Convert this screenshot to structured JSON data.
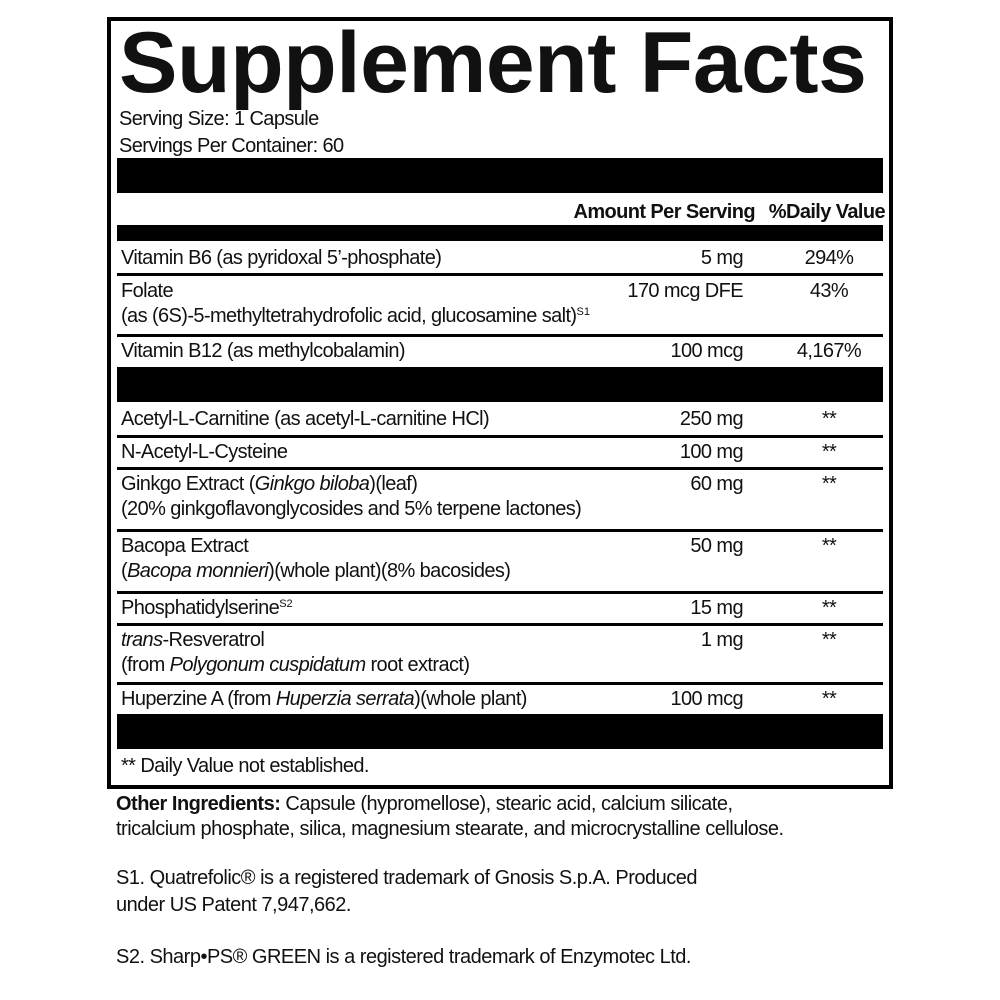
{
  "label": {
    "title": "Supplement Facts",
    "serving_size": "Serving Size: 1 Capsule",
    "servings_per_container": "Servings Per Container: 60",
    "header_amount": "Amount Per Serving",
    "header_dv": "%Daily Value",
    "vitamins": [
      {
        "name": "Vitamin B6 (as pyridoxal 5’-phosphate)",
        "amount": "5 mg",
        "dv": "294%"
      },
      {
        "name": "Folate",
        "name_line2": "(as (6S)-5-methyltetrahydrofolic acid, glucosamine salt)",
        "sup": "S1",
        "amount": "170 mcg DFE",
        "dv": "43%"
      },
      {
        "name": "Vitamin B12 (as methylcobalamin)",
        "amount": "100 mcg",
        "dv": "4,167%"
      }
    ],
    "others": [
      {
        "name": "Acetyl-L-Carnitine (as acetyl-L-carnitine HCl)",
        "amount": "250 mg",
        "dv": "**"
      },
      {
        "name": "N-Acetyl-L-Cysteine",
        "amount": "100 mg",
        "dv": "**"
      },
      {
        "name_a": "Ginkgo Extract (",
        "name_i": "Ginkgo biloba",
        "name_b": ")(leaf)",
        "name_line2": "(20% ginkgoflavonglycosides and 5% terpene lactones)",
        "amount": "60 mg",
        "dv": "**"
      },
      {
        "name": "Bacopa Extract",
        "line2_a": "(",
        "line2_i": "Bacopa monnieri",
        "line2_b": ")(whole plant)(8% bacosides)",
        "amount": "50 mg",
        "dv": "**"
      },
      {
        "name": "Phosphatidylserine",
        "sup": "S2",
        "amount": "15 mg",
        "dv": "**"
      },
      {
        "name_i": "trans",
        "name_b": "-Resveratrol",
        "line2_a": "(from ",
        "line2_i": "Polygonum cuspidatum",
        "line2_b": " root extract)",
        "amount": "1 mg",
        "dv": "**"
      },
      {
        "name_a": "Huperzine A (from ",
        "name_i": "Huperzia serrata",
        "name_b": ")(whole plant)",
        "amount": "100 mcg",
        "dv": "**"
      }
    ],
    "footnote": "** Daily Value not established."
  },
  "other_ingredients": {
    "label": "Other Ingredients:",
    "line1": " Capsule (hypromellose), stearic acid, calcium silicate,",
    "line2": "tricalcium phosphate, silica, magnesium stearate, and microcrystalline cellulose."
  },
  "notes": {
    "s1_line1": "S1. Quatrefolic® is a registered trademark of Gnosis S.p.A. Produced",
    "s1_line2": "under US Patent 7,947,662.",
    "s2": "S2. Sharp•PS® GREEN is a registered trademark of Enzymotec Ltd."
  }
}
